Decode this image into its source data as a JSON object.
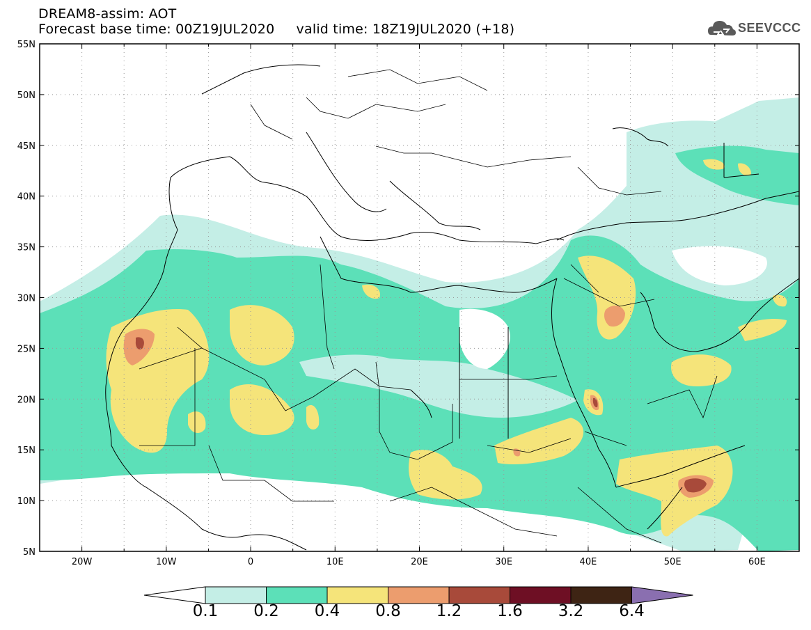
{
  "header": {
    "line1": "DREAM8-assim: AOT",
    "line2": "Forecast base time: 00Z19JUL2020     valid time: 18Z19JUL2020 (+18)"
  },
  "logo": {
    "text": "SEEVCCC"
  },
  "map": {
    "lat_labels": [
      "55N",
      "50N",
      "45N",
      "40N",
      "35N",
      "30N",
      "25N",
      "20N",
      "15N",
      "10N",
      "5N"
    ],
    "lon_labels": [
      "20W",
      "10W",
      "0",
      "10E",
      "20E",
      "30E",
      "40E",
      "50E",
      "60E"
    ],
    "lat_range": [
      5,
      55
    ],
    "lon_range": [
      -25,
      65
    ]
  },
  "colorbar": {
    "labels": [
      "0.1",
      "0.2",
      "0.4",
      "0.8",
      "1.2",
      "1.6",
      "3.2",
      "6.4"
    ],
    "colors": [
      "#ffffff",
      "#c4eee6",
      "#5ce0b8",
      "#f5e47a",
      "#ec9d6e",
      "#a84a3a",
      "#6e0f24",
      "#3e2414",
      "#8a6fb0"
    ]
  },
  "legend_colors": {
    "low": "#c4eee6",
    "mid": "#5ce0b8",
    "high": "#f5e47a",
    "vhigh": "#ec9d6e",
    "extreme": "#a84a3a"
  }
}
